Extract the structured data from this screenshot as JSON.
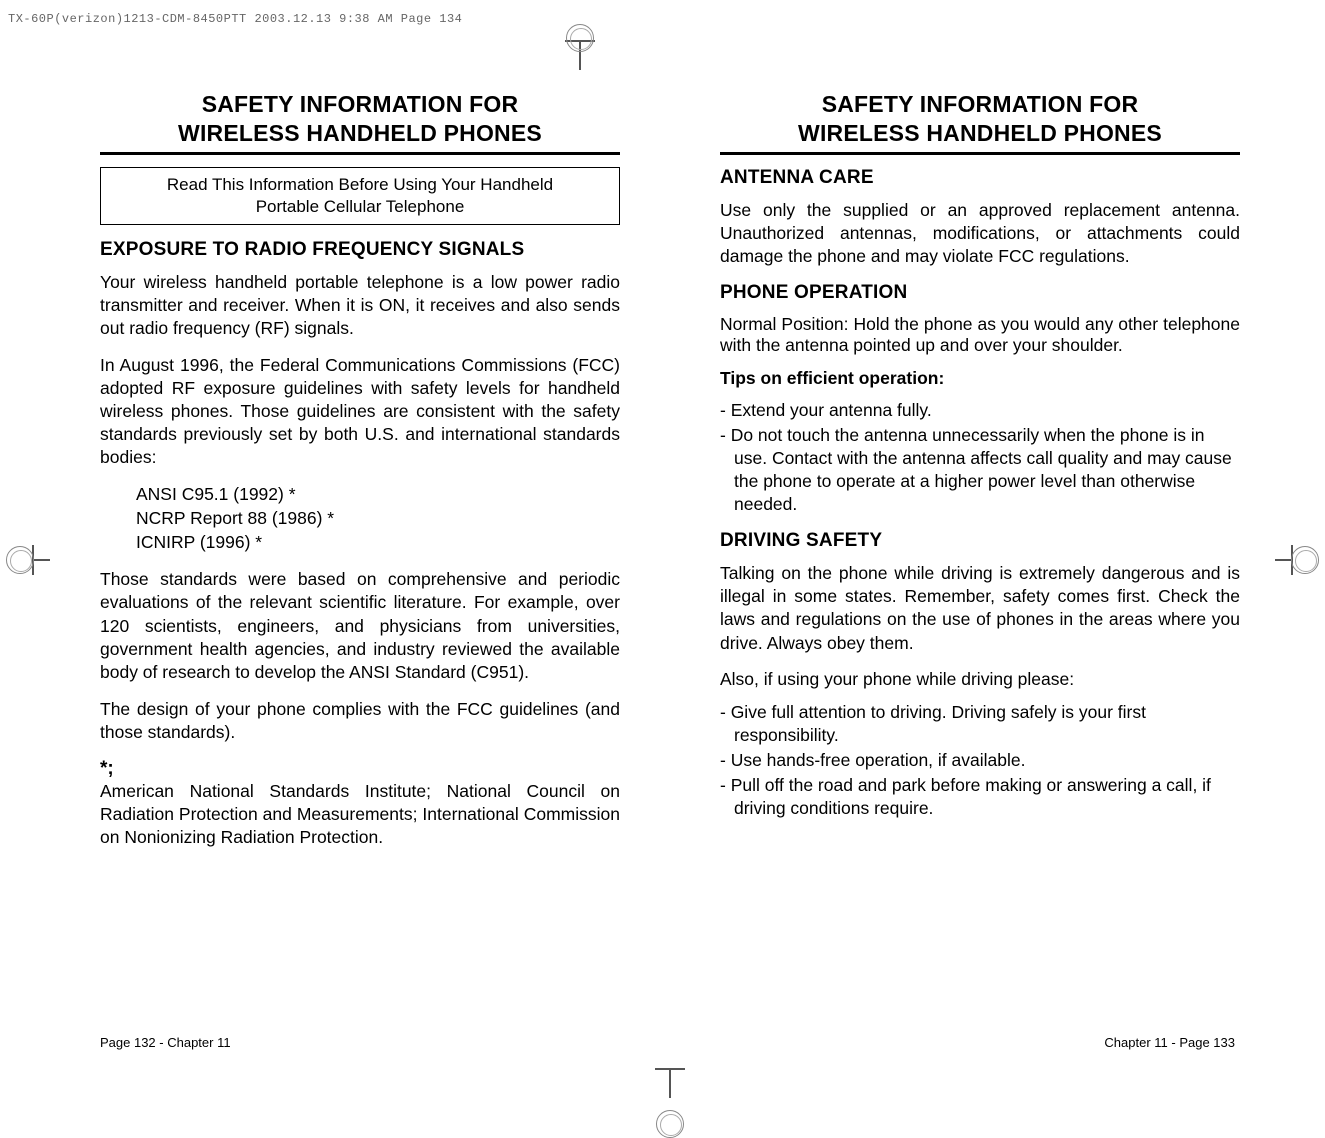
{
  "meta": {
    "header_line": "TX-60P(verizon)1213-CDM-8450PTT  2003.12.13  9:38 AM  Page 134"
  },
  "left": {
    "title_line1": "SAFETY INFORMATION FOR",
    "title_line2": "WIRELESS HANDHELD PHONES",
    "box_note_line1": "Read This Information Before Using Your Handheld",
    "box_note_line2": "Portable Cellular Telephone",
    "section1_head": "EXPOSURE TO RADIO FREQUENCY  SIGNALS",
    "para1": "Your wireless handheld portable telephone is a low power radio transmitter and receiver. When it is ON, it receives and also sends out radio frequency (RF) signals.",
    "para2": "In August 1996, the Federal Communications Commissions (FCC) adopted RF exposure guidelines with safety levels for handheld wireless phones. Those guidelines are consistent with the safety standards previously set by both U.S. and international standards bodies:",
    "std1": "ANSI C95.1 (1992) *",
    "std2": "NCRP Report 88 (1986) *",
    "std3": "ICNIRP (1996) *",
    "para3": "Those standards were based on comprehensive and periodic evaluations of the relevant scientific literature.  For example, over 120 scientists, engineers, and physicians from universities, government health agencies, and industry reviewed the available body of research to develop the ANSI Standard (C951).",
    "para4": "The design of your phone complies with the FCC guidelines (and those standards).",
    "star": "*;",
    "para5": "American National Standards Institute; National Council on Radiation Protection and Measurements; International Commission on Nonionizing Radiation Protection.",
    "footer": "Page 132 - Chapter 11"
  },
  "right": {
    "title_line1": "SAFETY INFORMATION FOR",
    "title_line2": "WIRELESS HANDHELD PHONES",
    "section1_head": "ANTENNA  CARE",
    "para1": "Use only the supplied or an approved replacement antenna. Unauthorized antennas, modifications, or attachments could damage the phone and may violate FCC regulations.",
    "section2_head": "PHONE OPERATION",
    "para2": "Normal Position: Hold the phone as you would any other telephone with the antenna pointed up and over your shoulder.",
    "tips_head": "Tips on efficient operation:",
    "tip1": "- Extend your antenna fully.",
    "tip2": "- Do not touch the antenna unnecessarily when the phone is in use. Contact with the antenna affects call quality and may cause the phone to operate at a higher power level than otherwise needed.",
    "section3_head": "DRIVING SAFETY",
    "para3": "Talking on the phone while driving is extremely dangerous and is illegal in some states. Remember, safety comes first. Check the laws and regulations on the use of phones in the areas where you drive. Always obey them.",
    "para4": "Also, if using your phone while driving please:",
    "drv1": "- Give full attention to driving. Driving safely is your first responsibility.",
    "drv2": "- Use hands-free operation, if available.",
    "drv3": "- Pull off the road and park before making or answering a call, if driving conditions require.",
    "footer": "Chapter 11 - Page 133"
  }
}
